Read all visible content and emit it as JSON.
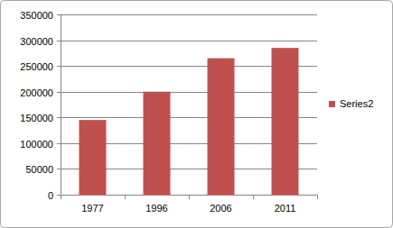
{
  "chart_data": {
    "type": "bar",
    "categories": [
      "1977",
      "1996",
      "2006",
      "2011"
    ],
    "series": [
      {
        "name": "Series2",
        "color": "#c0504d",
        "values": [
          145000,
          200000,
          265000,
          285000
        ]
      }
    ],
    "ylim": [
      0,
      350000
    ],
    "yticks": [
      0,
      50000,
      100000,
      150000,
      200000,
      250000,
      300000,
      350000
    ],
    "grid": true,
    "legend": "right"
  }
}
